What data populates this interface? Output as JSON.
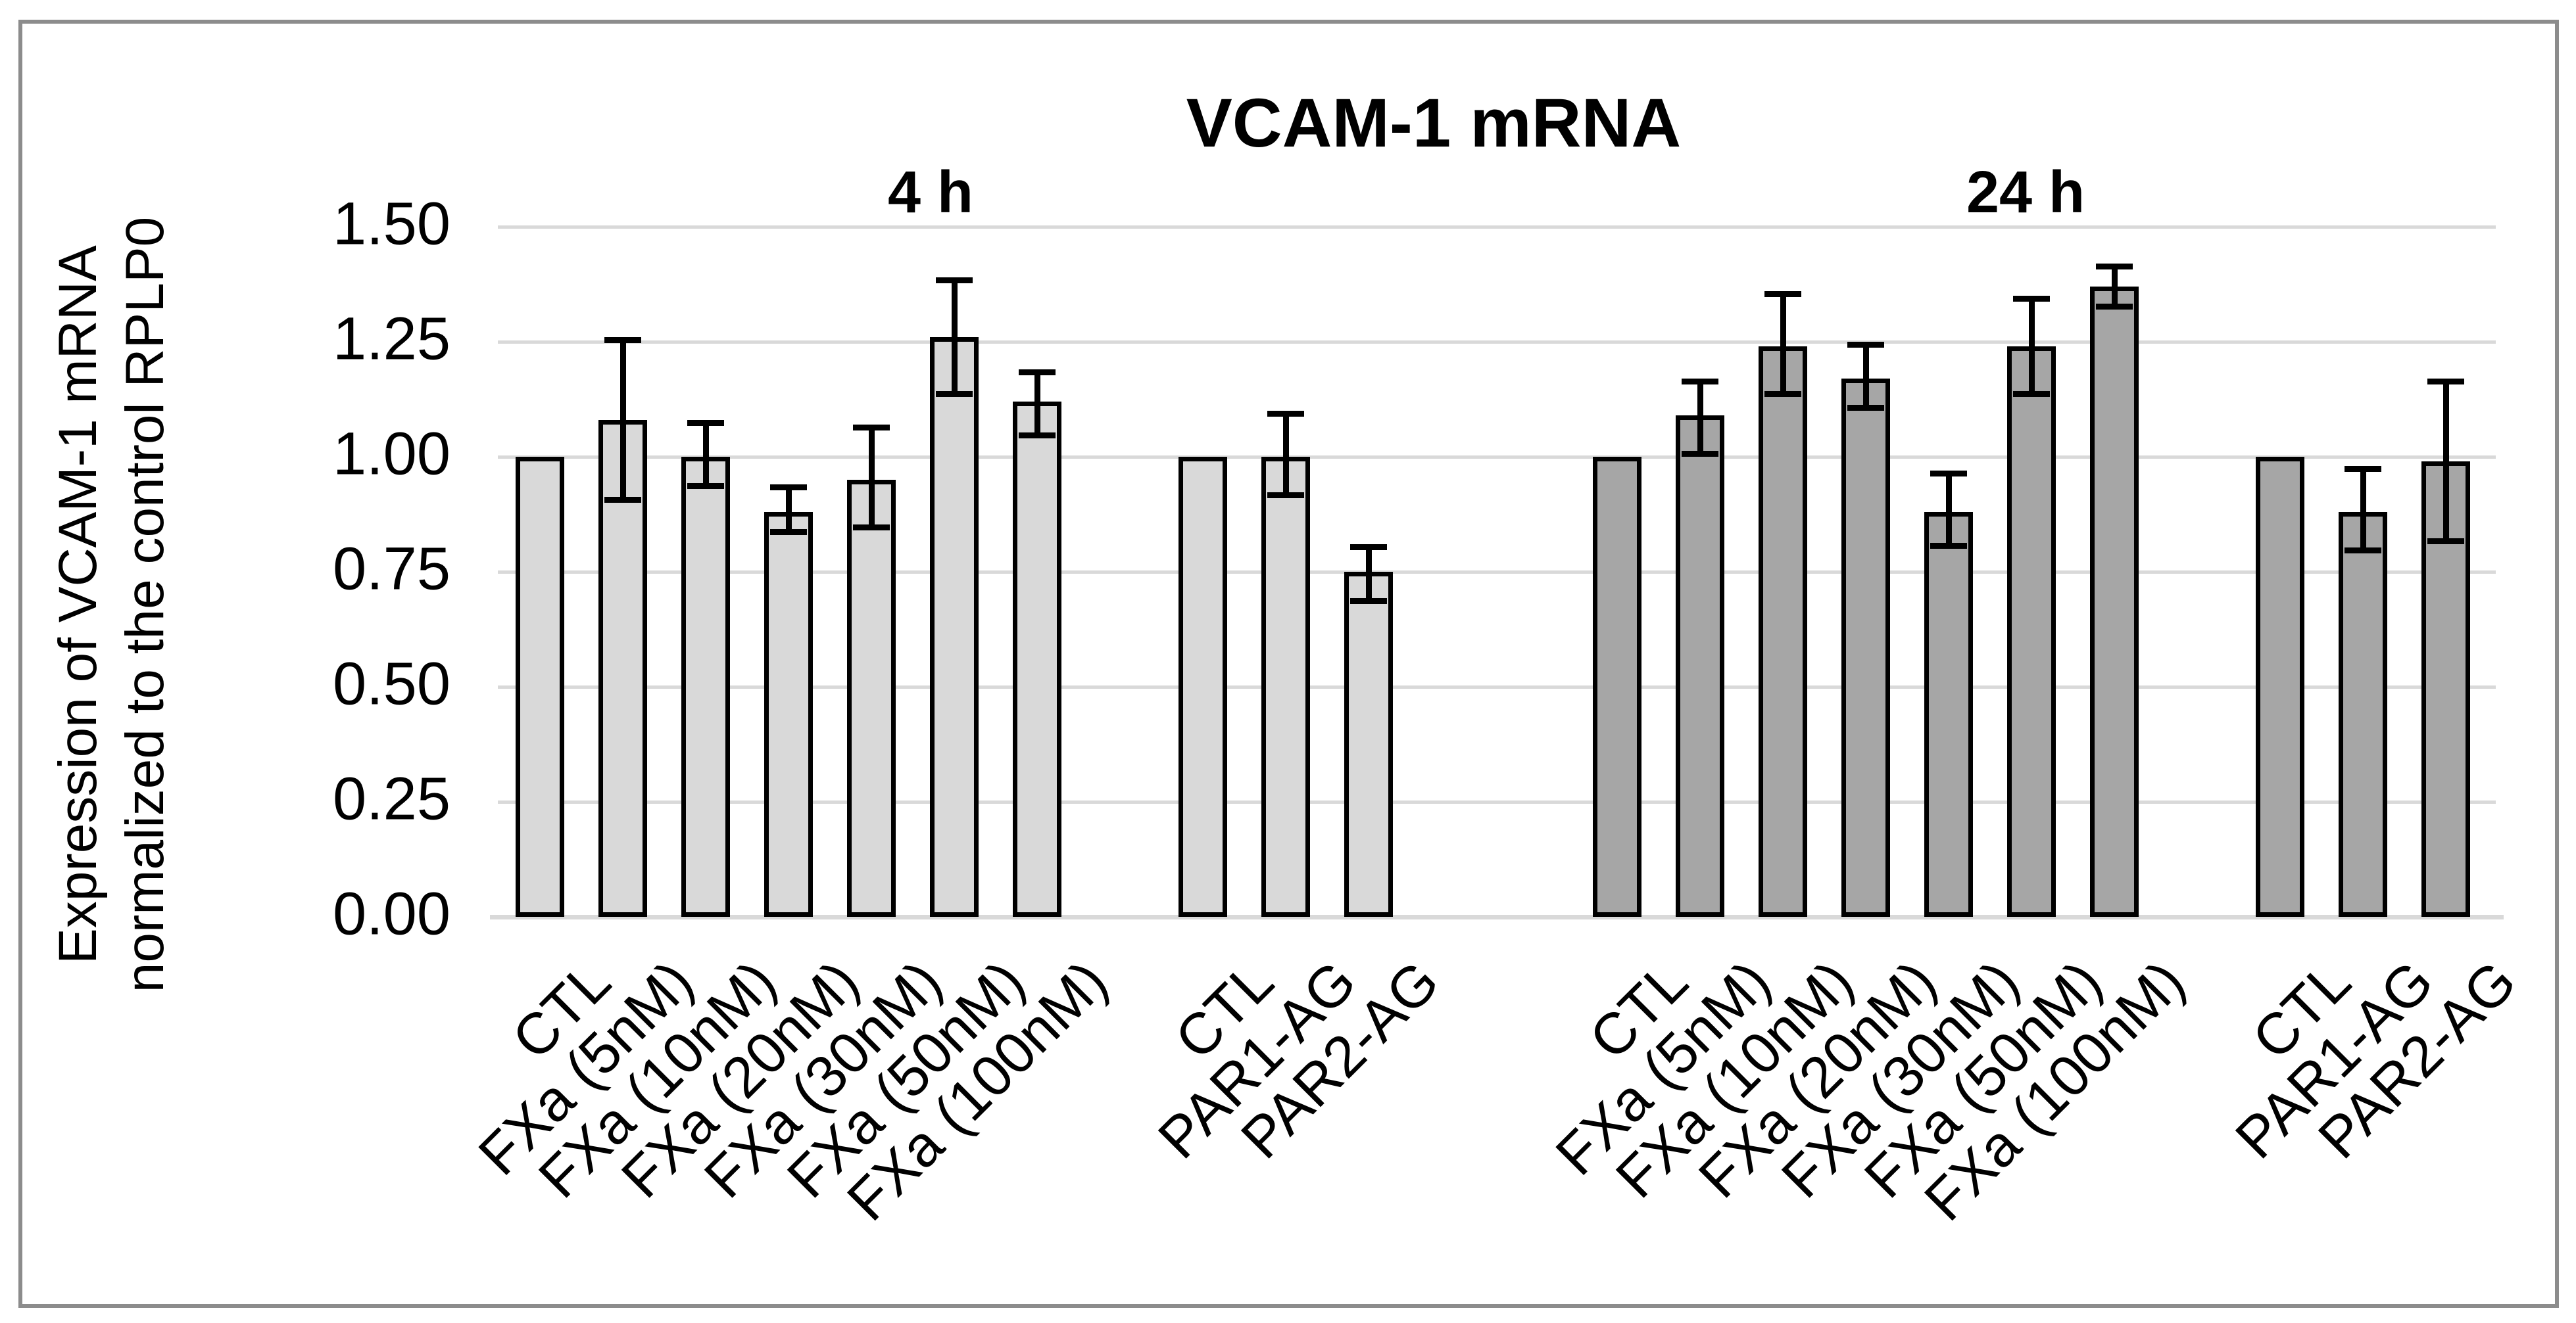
{
  "figure": {
    "title": "VCAM-1 mRNA",
    "y_axis_label_line1": "Expression of VCAM-1 mRNA",
    "y_axis_label_line2": "normalized to the control RPLP0"
  },
  "style": {
    "background": "#ffffff",
    "frame_border_color": "#8c8c8c",
    "gridline_color": "#d9d9d9",
    "axis_line_color": "#d9d9d9",
    "bar_border_color": "#000000",
    "error_bar_color": "#000000",
    "text_color": "#000000",
    "group_4h_fill": "#d9d9d9",
    "group_24h_fill": "#a6a6a6"
  },
  "chart_data": {
    "type": "bar",
    "title": "VCAM-1 mRNA",
    "ylabel": "Expression of VCAM-1 mRNA normalized to the control RPLP0",
    "xlabel": "",
    "ylim": [
      0,
      1.5
    ],
    "yticks": [
      0,
      0.25,
      0.5,
      0.75,
      1.0,
      1.25,
      1.5
    ],
    "ytick_labels": [
      "0.00",
      "0.25",
      "0.50",
      "0.75",
      "1.00",
      "1.25",
      "1.50"
    ],
    "grid": true,
    "legend": false,
    "error_bars": true,
    "groups": [
      {
        "label": "4 h",
        "fill": "#d9d9d9",
        "subgroups": [
          {
            "bars": [
              {
                "category": "CTL",
                "value": 1.0,
                "err_up": null,
                "err_down": null
              },
              {
                "category": "FXa (5nM)",
                "value": 1.08,
                "err_up": 0.18,
                "err_down": 0.18
              },
              {
                "category": "FXa (10nM)",
                "value": 1.0,
                "err_up": 0.08,
                "err_down": 0.07
              },
              {
                "category": "FXa (20nM)",
                "value": 0.88,
                "err_up": 0.06,
                "err_down": 0.05
              },
              {
                "category": "FXa (30nM)",
                "value": 0.95,
                "err_up": 0.12,
                "err_down": 0.11
              },
              {
                "category": "FXa (50nM)",
                "value": 1.26,
                "err_up": 0.13,
                "err_down": 0.13
              },
              {
                "category": "FXa (100nM)",
                "value": 1.12,
                "err_up": 0.07,
                "err_down": 0.08
              }
            ]
          },
          {
            "bars": [
              {
                "category": "CTL",
                "value": 1.0,
                "err_up": null,
                "err_down": null
              },
              {
                "category": "PAR1-AG",
                "value": 1.0,
                "err_up": 0.1,
                "err_down": 0.09
              },
              {
                "category": "PAR2-AG",
                "value": 0.75,
                "err_up": 0.06,
                "err_down": 0.07
              }
            ]
          }
        ]
      },
      {
        "label": "24 h",
        "fill": "#a6a6a6",
        "subgroups": [
          {
            "bars": [
              {
                "category": "CTL",
                "value": 1.0,
                "err_up": null,
                "err_down": null
              },
              {
                "category": "FXa (5nM)",
                "value": 1.09,
                "err_up": 0.08,
                "err_down": 0.09
              },
              {
                "category": "FXa (10nM)",
                "value": 1.24,
                "err_up": 0.12,
                "err_down": 0.11
              },
              {
                "category": "FXa (20nM)",
                "value": 1.17,
                "err_up": 0.08,
                "err_down": 0.07
              },
              {
                "category": "FXa (30nM)",
                "value": 0.88,
                "err_up": 0.09,
                "err_down": 0.08
              },
              {
                "category": "FXa (50nM)",
                "value": 1.24,
                "err_up": 0.11,
                "err_down": 0.11
              },
              {
                "category": "FXa (100nM)",
                "value": 1.37,
                "err_up": 0.05,
                "err_down": 0.05
              }
            ]
          },
          {
            "bars": [
              {
                "category": "CTL",
                "value": 1.0,
                "err_up": null,
                "err_down": null
              },
              {
                "category": "PAR1-AG",
                "value": 0.88,
                "err_up": 0.1,
                "err_down": 0.09
              },
              {
                "category": "PAR2-AG",
                "value": 0.99,
                "err_up": 0.18,
                "err_down": 0.18
              }
            ]
          }
        ]
      }
    ]
  }
}
